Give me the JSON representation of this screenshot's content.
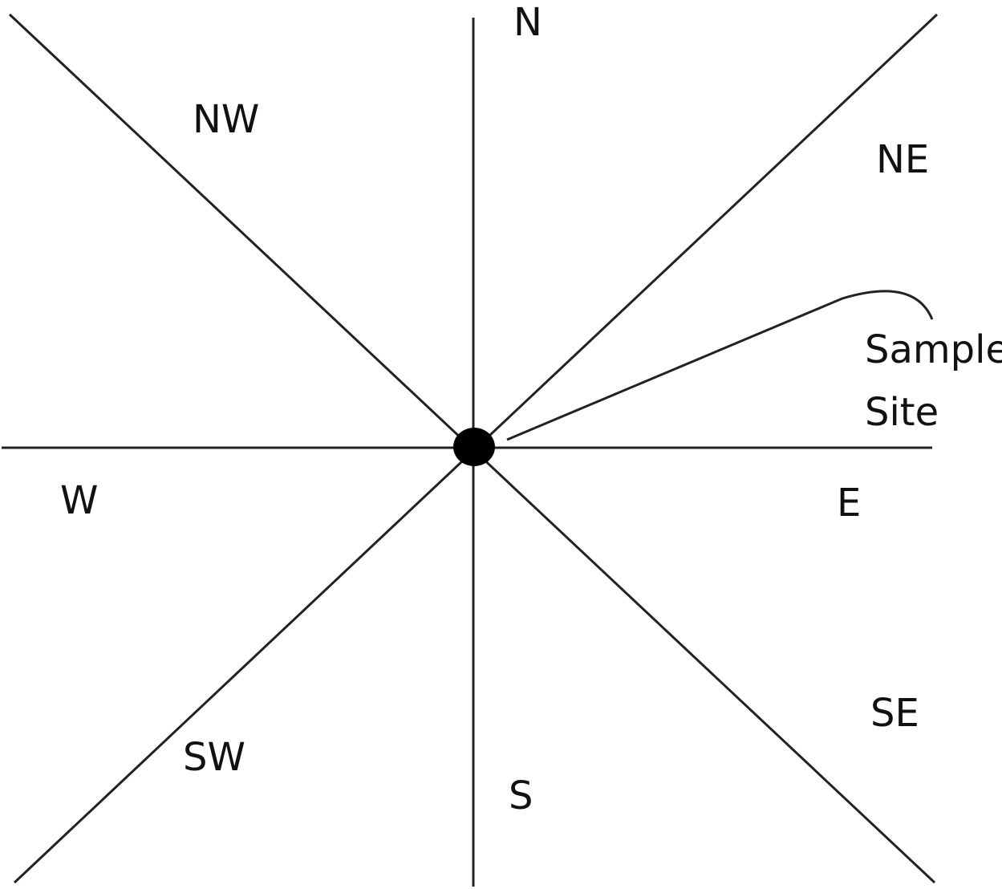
{
  "labels": {
    "n": "N",
    "nw": "NW",
    "ne": "NE",
    "w": "W",
    "e": "E",
    "sw": "SW",
    "se": "SE",
    "s": "S"
  },
  "callout": {
    "line1": "Sample",
    "line2": "Site"
  }
}
